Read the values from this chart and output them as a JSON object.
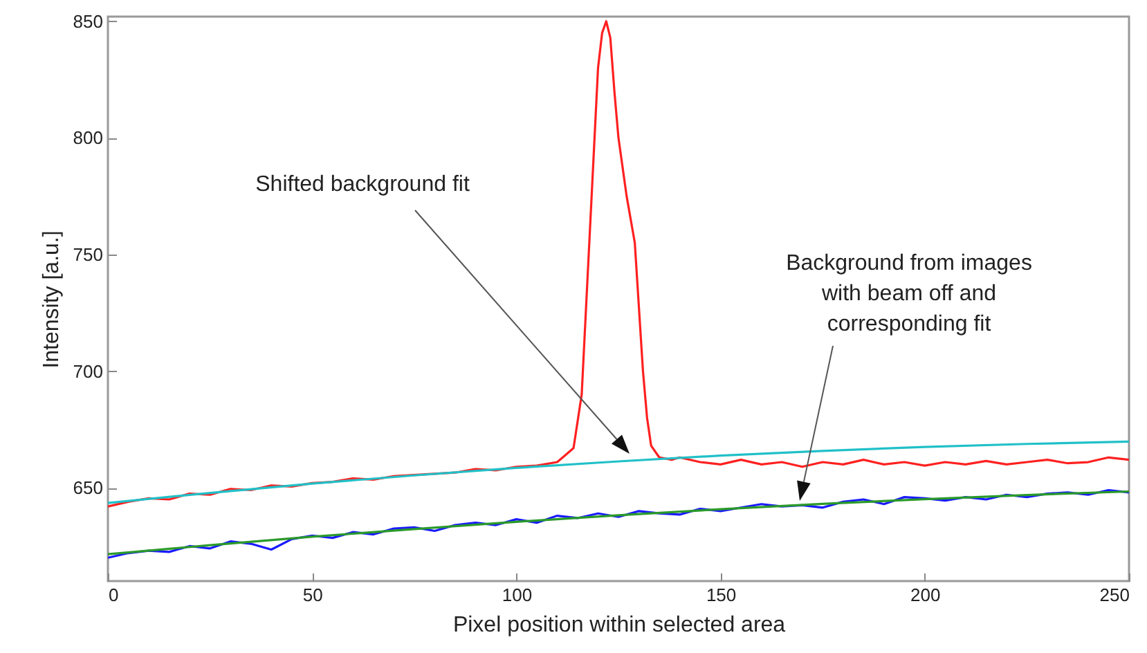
{
  "chart_data": {
    "type": "line",
    "xlabel": "Pixel position within selected area",
    "ylabel": "Intensity [a.u.]",
    "xlim": [
      0,
      250
    ],
    "xticks": [
      0,
      50,
      100,
      150,
      200,
      250
    ],
    "ylim": [
      610,
      852
    ],
    "yticks": [
      650,
      700,
      750,
      800,
      850
    ],
    "grid": false,
    "marker": "none",
    "line_style": "solid",
    "series": [
      {
        "color": "#ff2020",
        "x": [
          0,
          5,
          10,
          15,
          20,
          25,
          30,
          35,
          40,
          45,
          50,
          55,
          60,
          65,
          70,
          75,
          80,
          85,
          90,
          95,
          100,
          105,
          110,
          112,
          114,
          116,
          118,
          120,
          121,
          122,
          123,
          124,
          125,
          127,
          129,
          131,
          132,
          133,
          135,
          138,
          140,
          145,
          150,
          155,
          160,
          165,
          170,
          175,
          180,
          185,
          190,
          195,
          200,
          205,
          210,
          215,
          220,
          225,
          230,
          235,
          240,
          245,
          250
        ],
        "values": [
          642,
          644,
          645.5,
          645,
          647.5,
          647,
          649.5,
          649,
          651,
          650.5,
          652,
          652.5,
          654,
          653.5,
          655,
          655.5,
          656,
          656.5,
          658,
          657.5,
          659,
          659.5,
          661,
          664,
          667,
          690,
          760,
          830,
          845,
          850,
          843,
          820,
          800,
          775,
          755,
          700,
          680,
          668,
          663,
          662,
          663,
          661,
          660,
          662,
          660,
          661,
          659,
          661,
          660,
          662,
          660,
          661,
          659.5,
          661,
          660,
          661.5,
          660,
          661,
          662,
          660.5,
          661,
          663,
          662
        ]
      },
      {
        "color": "#20c0c8",
        "x": [
          0,
          25,
          50,
          75,
          100,
          125,
          150,
          175,
          200,
          225,
          250
        ],
        "values": [
          643.5,
          647.8,
          651.8,
          655.3,
          658.5,
          661.3,
          663.8,
          665.8,
          667.5,
          668.8,
          669.8
        ]
      },
      {
        "color": "#1a1aff",
        "x": [
          0,
          5,
          10,
          15,
          20,
          25,
          30,
          35,
          40,
          45,
          50,
          55,
          60,
          65,
          70,
          75,
          80,
          85,
          90,
          95,
          100,
          105,
          110,
          115,
          120,
          125,
          130,
          135,
          140,
          145,
          150,
          155,
          160,
          165,
          170,
          175,
          180,
          185,
          190,
          195,
          200,
          205,
          210,
          215,
          220,
          225,
          230,
          235,
          240,
          245,
          250
        ],
        "values": [
          620,
          622,
          623,
          622.5,
          625,
          624,
          627,
          626,
          623.5,
          628,
          629.5,
          628.5,
          631,
          630,
          632.5,
          633,
          631.5,
          634,
          635,
          634,
          636.5,
          635,
          638,
          637,
          639,
          637.5,
          640,
          639,
          638.5,
          641,
          640,
          641.5,
          643,
          642,
          642.5,
          641.5,
          644,
          645,
          643,
          646,
          645.5,
          644.5,
          646,
          645,
          647,
          646,
          647.5,
          648,
          647,
          649,
          648
        ]
      },
      {
        "color": "#2a9a2a",
        "x": [
          0,
          25,
          50,
          75,
          100,
          125,
          150,
          175,
          200,
          225,
          250
        ],
        "values": [
          621.5,
          625.4,
          629,
          632.3,
          635.4,
          638.2,
          640.8,
          643.1,
          645.1,
          646.9,
          648.4
        ]
      }
    ],
    "annotations": [
      "Shifted background fit",
      "Background from images\nwith beam off and\ncorresponding fit"
    ]
  }
}
